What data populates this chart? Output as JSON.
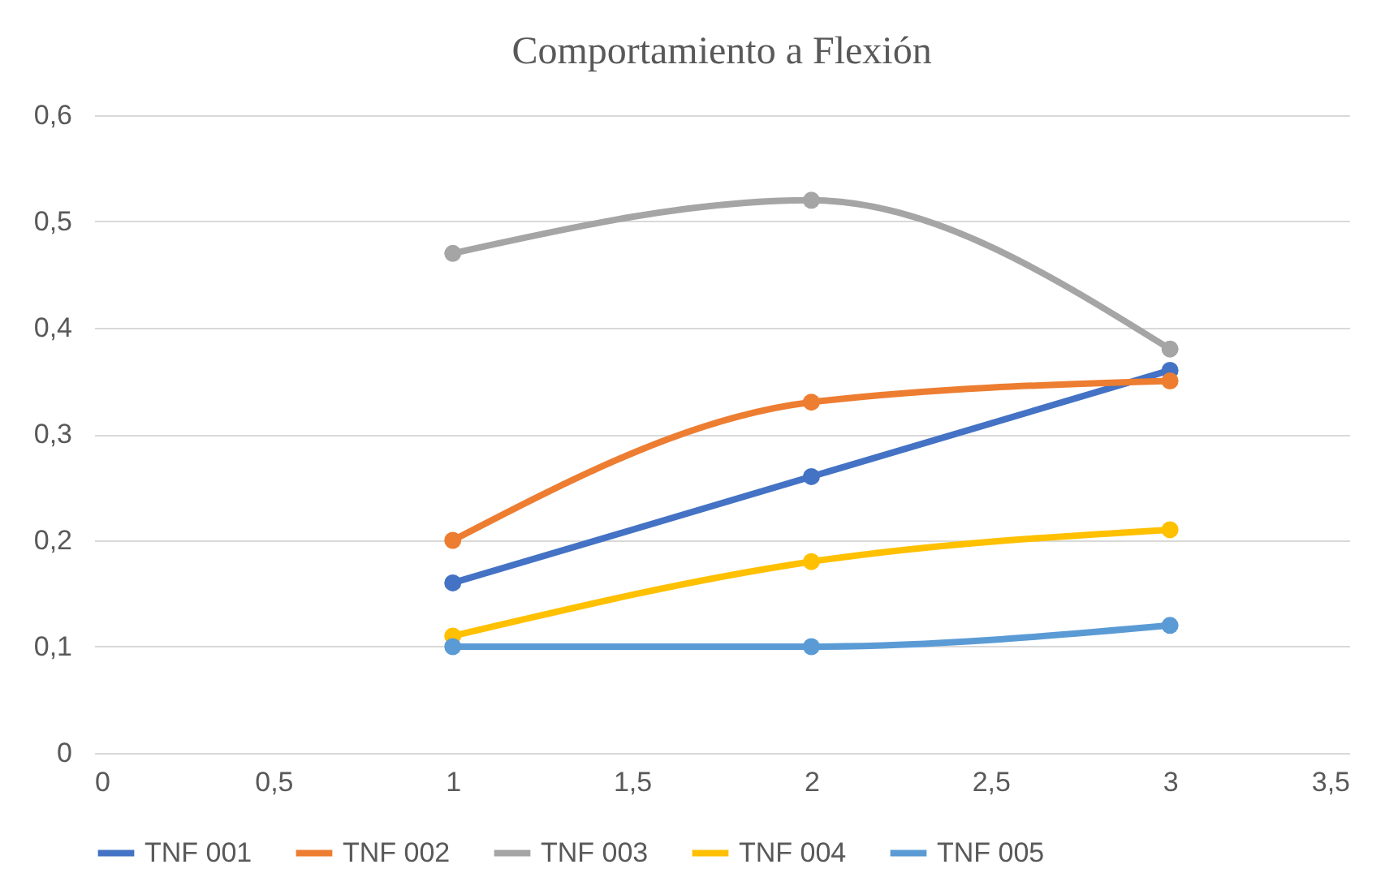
{
  "chart_data": {
    "type": "line",
    "title": "Comportamiento a Flexión",
    "x": [
      1,
      2,
      3
    ],
    "series": [
      {
        "name": "TNF 001",
        "color": "#4472c4",
        "values": [
          0.16,
          0.26,
          0.36
        ]
      },
      {
        "name": "TNF 002",
        "color": "#ed7d31",
        "values": [
          0.2,
          0.33,
          0.35
        ]
      },
      {
        "name": "TNF 003",
        "color": "#a5a5a5",
        "values": [
          0.47,
          0.52,
          0.38
        ]
      },
      {
        "name": "TNF 004",
        "color": "#ffc000",
        "values": [
          0.11,
          0.18,
          0.21
        ]
      },
      {
        "name": "TNF 005",
        "color": "#5b9bd5",
        "values": [
          0.1,
          0.1,
          0.12
        ]
      }
    ],
    "xlim": [
      0,
      3.5
    ],
    "xticks": [
      0,
      {
        "value": 0.5,
        "label": "0,5"
      },
      1,
      {
        "value": 1.5,
        "label": "1,5"
      },
      2,
      {
        "value": 2.5,
        "label": "2,5"
      },
      3,
      {
        "value": 3.5,
        "label": "3,5"
      }
    ],
    "ylim": [
      0,
      0.6
    ],
    "yticks": [
      0,
      {
        "value": 0.1,
        "label": "0,1"
      },
      {
        "value": 0.2,
        "label": "0,2"
      },
      {
        "value": 0.3,
        "label": "0,3"
      },
      {
        "value": 0.4,
        "label": "0,4"
      },
      {
        "value": 0.5,
        "label": "0,5"
      },
      {
        "value": 0.6,
        "label": "0,6"
      }
    ],
    "grid": "y",
    "legend": "bottom",
    "marker": "circle",
    "line_style": "solid"
  }
}
